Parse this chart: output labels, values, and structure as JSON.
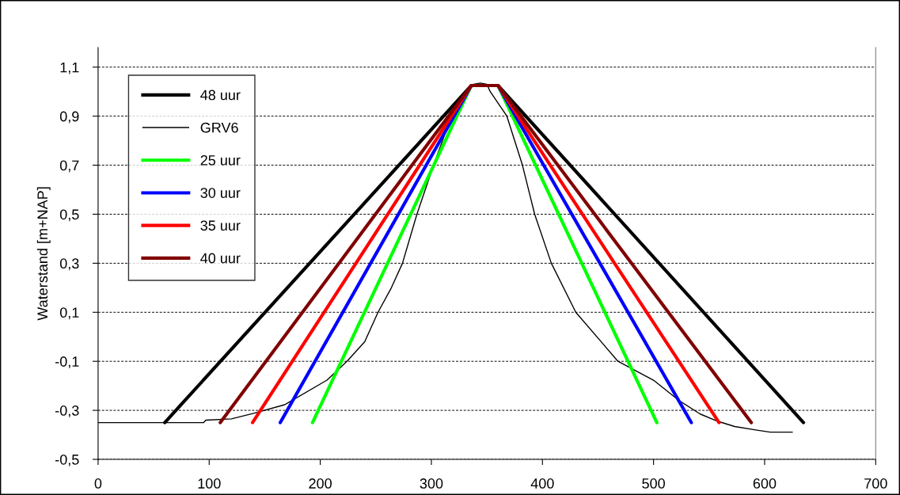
{
  "chart_data": {
    "type": "line",
    "ylabel": "Waterstand [m+NAP]",
    "xlim": [
      0,
      700
    ],
    "xticks": [
      0,
      100,
      200,
      300,
      400,
      500,
      600,
      700
    ],
    "ylim": [
      -0.5,
      1.18
    ],
    "yticks": [
      {
        "value": -0.5,
        "label": "-0,5"
      },
      {
        "value": -0.3,
        "label": "-0,3"
      },
      {
        "value": -0.1,
        "label": "-0,1"
      },
      {
        "value": 0.1,
        "label": "0,1"
      },
      {
        "value": 0.3,
        "label": "0,3"
      },
      {
        "value": 0.5,
        "label": "0,5"
      },
      {
        "value": 0.7,
        "label": "0,7"
      },
      {
        "value": 0.9,
        "label": "0,9"
      },
      {
        "value": 1.1,
        "label": "1,1"
      }
    ],
    "grid": "y",
    "legend": "top left",
    "marker": "none",
    "series": [
      {
        "name": "48 uur",
        "color": "#000000",
        "x": [
          60,
          336,
          360,
          635
        ],
        "values": [
          -0.35,
          1.025,
          1.025,
          -0.35
        ]
      },
      {
        "name": "GRV6",
        "color": "#000000",
        "x": [
          0,
          95,
          97,
          120,
          140,
          168,
          206,
          224,
          240,
          252,
          264,
          274,
          287,
          302,
          318,
          331,
          338,
          344,
          350,
          353,
          368,
          382,
          393,
          408,
          430,
          468,
          500,
          523,
          542,
          558,
          573,
          592,
          605,
          625
        ],
        "values": [
          -0.35,
          -0.35,
          -0.34,
          -0.335,
          -0.312,
          -0.277,
          -0.177,
          -0.1,
          -0.02,
          0.1,
          0.2,
          0.3,
          0.5,
          0.7,
          0.9,
          1.0,
          1.03,
          1.035,
          1.03,
          1.0,
          0.9,
          0.7,
          0.5,
          0.3,
          0.1,
          -0.1,
          -0.177,
          -0.26,
          -0.315,
          -0.345,
          -0.366,
          -0.38,
          -0.389,
          -0.389
        ]
      },
      {
        "name": "25 uur",
        "color": "#00ff00",
        "x": [
          193,
          336,
          360,
          503
        ],
        "values": [
          -0.35,
          1.025,
          1.025,
          -0.35
        ]
      },
      {
        "name": "30 uur",
        "color": "#0000ff",
        "x": [
          164,
          336,
          360,
          534
        ],
        "values": [
          -0.35,
          1.025,
          1.025,
          -0.35
        ]
      },
      {
        "name": "35 uur",
        "color": "#ff0000",
        "x": [
          139,
          336,
          360,
          559
        ],
        "values": [
          -0.35,
          1.025,
          1.025,
          -0.35
        ]
      },
      {
        "name": "40 uur",
        "color": "#800000",
        "x": [
          110,
          336,
          360,
          588
        ],
        "values": [
          -0.35,
          1.025,
          1.025,
          -0.35
        ]
      }
    ]
  }
}
